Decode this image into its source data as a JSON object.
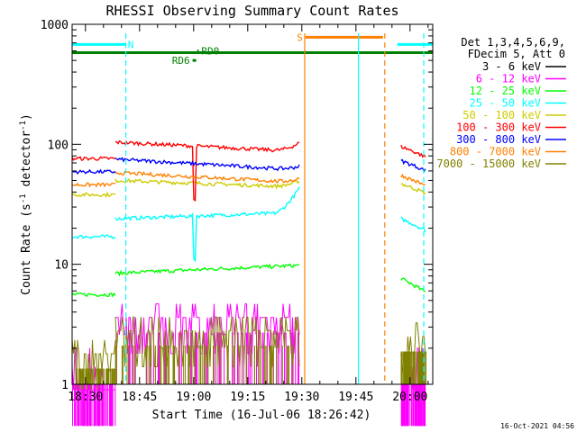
{
  "chart_data": {
    "type": "line",
    "title": "RHESSI Observing Summary Count Rates",
    "xlabel": "Start Time (16-Jul-06 18:26:42)",
    "ylabel_main": "Count Rate (s",
    "ylabel_sup1": "-1",
    "ylabel_mid": " detector",
    "ylabel_sup2": "-1",
    "ylabel_end": ")",
    "yscale": "log",
    "ylim": [
      1,
      1000
    ],
    "xlim_minutes": [
      -3.7,
      96.3
    ],
    "xticks": [
      {
        "t": 0,
        "label": "18:30"
      },
      {
        "t": 15,
        "label": "18:45"
      },
      {
        "t": 30,
        "label": "19:00"
      },
      {
        "t": 45,
        "label": "19:15"
      },
      {
        "t": 60,
        "label": "19:30"
      },
      {
        "t": 75,
        "label": "19:45"
      },
      {
        "t": 90,
        "label": "20:00"
      }
    ],
    "yticks": [
      {
        "v": 1,
        "label": "1"
      },
      {
        "v": 10,
        "label": "10"
      },
      {
        "v": 100,
        "label": "100"
      },
      {
        "v": 1000,
        "label": "1000"
      }
    ],
    "legend_header": [
      "Det 1,3,4,5,6,9,",
      "FDecim 5, Att 0"
    ],
    "legend_position": "right",
    "footer_date": "16-Oct-2021 04:56",
    "series": [
      {
        "name": "3 - 6 keV",
        "color": "#000000",
        "segments": []
      },
      {
        "name": "6 - 12 keV",
        "color": "#ff00ff",
        "segments": [
          {
            "t0": -3.7,
            "t1": 8.3,
            "level": 0.6
          },
          {
            "t0": 8.3,
            "t1": 59.5,
            "level": 3.6
          },
          {
            "t0": 87.5,
            "t1": 94.5,
            "level": 0.6
          }
        ]
      },
      {
        "name": "12 - 25 keV",
        "color": "#00ff00",
        "segments": [
          {
            "t0": -3.7,
            "t1": 8.3,
            "level": 5.6
          },
          {
            "t0": 8.3,
            "t1": 59.5,
            "level": 8.4,
            "end": 9.8
          },
          {
            "t0": 87.5,
            "t1": 94.5,
            "level": 7.6,
            "end": 5.8
          }
        ]
      },
      {
        "name": "25 - 50 keV",
        "color": "#00ffff",
        "segments": [
          {
            "t0": -3.7,
            "t1": 8.3,
            "level": 17
          },
          {
            "t0": 8.3,
            "t1": 59.5,
            "level": 24,
            "end": 27,
            "rise": 44,
            "dip": {
              "t": 30.3,
              "v": 11
            }
          },
          {
            "t0": 87.5,
            "t1": 94.5,
            "level": 24,
            "end": 19
          }
        ]
      },
      {
        "name": "50 - 100 keV",
        "color": "#cccc00",
        "segments": [
          {
            "t0": -3.7,
            "t1": 8.3,
            "level": 38
          },
          {
            "t0": 8.3,
            "t1": 59.5,
            "level": 50,
            "end": 44,
            "rise": 50
          },
          {
            "t0": 87.5,
            "t1": 94.5,
            "level": 47,
            "end": 39
          }
        ]
      },
      {
        "name": "100 - 300 keV",
        "color": "#ff0000",
        "segments": [
          {
            "t0": -3.7,
            "t1": 8.3,
            "level": 76
          },
          {
            "t0": 8.3,
            "t1": 59.5,
            "level": 104,
            "end": 87,
            "rise": 104,
            "dip": {
              "t": 30.3,
              "v": 34
            }
          },
          {
            "t0": 87.5,
            "t1": 94.5,
            "level": 96,
            "end": 78
          }
        ]
      },
      {
        "name": "300 - 800 keV",
        "color": "#0000ff",
        "segments": [
          {
            "t0": -3.7,
            "t1": 8.3,
            "level": 59
          },
          {
            "t0": 8.3,
            "t1": 59.5,
            "level": 75,
            "end": 61,
            "rise": 66
          },
          {
            "t0": 87.5,
            "t1": 94.5,
            "level": 73,
            "end": 60
          }
        ]
      },
      {
        "name": "800 - 7000 keV",
        "color": "#ff8000",
        "segments": [
          {
            "t0": -3.7,
            "t1": 8.3,
            "level": 46
          },
          {
            "t0": 8.3,
            "t1": 59.5,
            "level": 58,
            "end": 48,
            "rise": 52
          },
          {
            "t0": 87.5,
            "t1": 94.5,
            "level": 55,
            "end": 45
          }
        ]
      },
      {
        "name": "7000 - 15000 keV",
        "color": "#808000",
        "segments": [
          {
            "t0": -3.7,
            "t1": 8.3,
            "level": 1.8
          },
          {
            "t0": 8.3,
            "t1": 59.5,
            "level": 2.8
          },
          {
            "t0": 87.5,
            "t1": 94.5,
            "level": 2.5
          }
        ]
      }
    ],
    "flag_bars": [
      {
        "label": "N",
        "color": "#00ffff",
        "t0": -3.7,
        "t1": 11.0,
        "value": 680,
        "label_side": "end",
        "label_color": "#00ffff"
      },
      {
        "label": "",
        "color": "#00ffff",
        "t0": 86.5,
        "t1": 96.3,
        "value": 680,
        "label_side": "none"
      },
      {
        "label": "S",
        "color": "#ff8000",
        "t0": 61.0,
        "t1": 82.5,
        "value": 780,
        "label_side": "start",
        "label_color": "#ff8000"
      },
      {
        "label": "",
        "color": "#008000",
        "t0": -3.7,
        "t1": 96.3,
        "value": 580,
        "label_side": "none"
      },
      {
        "label": "RD0",
        "color": "#008000",
        "t0": 31.0,
        "t1": 31.4,
        "value": 600,
        "label_side": "end",
        "label_color": "#008000"
      },
      {
        "label": "RD6",
        "color": "#008000",
        "t0": 29.7,
        "t1": 30.7,
        "value": 500,
        "label_side": "start",
        "label_color": "#008000"
      }
    ],
    "vlines": [
      {
        "t": 11.2,
        "color": "#00ffff",
        "style": "dashed"
      },
      {
        "t": 93.8,
        "color": "#00ffff",
        "style": "dashed"
      },
      {
        "t": 60.8,
        "color": "#ff8000",
        "style": "solid"
      },
      {
        "t": 83.0,
        "color": "#ff8000",
        "style": "dashed"
      },
      {
        "t": 75.7,
        "color": "#00ffff",
        "style": "solid"
      }
    ]
  }
}
